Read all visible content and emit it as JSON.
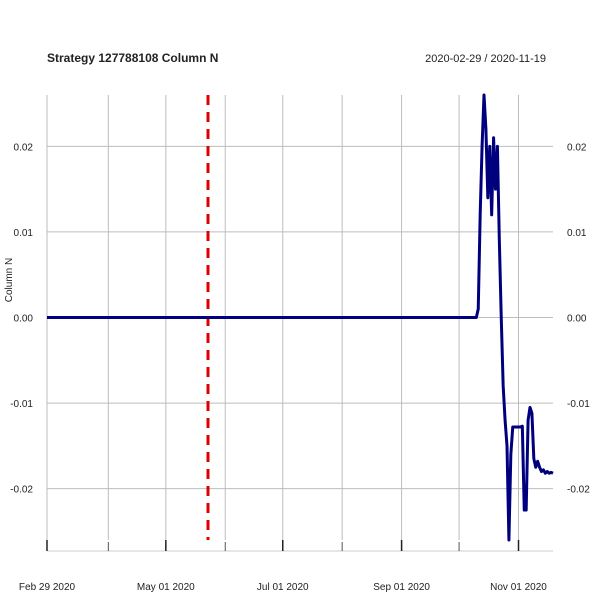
{
  "chart_data": {
    "type": "line",
    "title": "Strategy 127788108 Column N",
    "date_range": "2020-02-29 / 2020-11-19",
    "ylabel": "Column N",
    "xlim": [
      "2020-02-29",
      "2020-11-19"
    ],
    "ylim": [
      -0.026,
      0.026
    ],
    "y_ticks": [
      0.02,
      0.01,
      0.0,
      -0.01,
      -0.02
    ],
    "y_tick_labels": [
      "0.02",
      "0.01",
      "0.00",
      "-0.01",
      "-0.02"
    ],
    "x_ticks": [
      "2020-02-29",
      "2020-05-01",
      "2020-07-01",
      "2020-09-01",
      "2020-11-01"
    ],
    "x_tick_labels": [
      "Feb 29 2020",
      "May 01 2020",
      "Jul 01 2020",
      "Sep 01 2020",
      "Nov 01 2020"
    ],
    "grid": true,
    "event_line": {
      "x": "2020-05-23",
      "color": "#dd0000",
      "style": "dashed"
    },
    "series": [
      {
        "color": "#00007f",
        "x": [
          "2020-02-29",
          "2020-10-10",
          "2020-10-11",
          "2020-10-12",
          "2020-10-13",
          "2020-10-14",
          "2020-10-15",
          "2020-10-16",
          "2020-10-17",
          "2020-10-18",
          "2020-10-19",
          "2020-10-20",
          "2020-10-21",
          "2020-10-22",
          "2020-10-23",
          "2020-10-24",
          "2020-10-25",
          "2020-10-26",
          "2020-10-27",
          "2020-10-28",
          "2020-10-29",
          "2020-10-30",
          "2020-10-31",
          "2020-11-01",
          "2020-11-02",
          "2020-11-03",
          "2020-11-04",
          "2020-11-05",
          "2020-11-06",
          "2020-11-07",
          "2020-11-08",
          "2020-11-09",
          "2020-11-10",
          "2020-11-11",
          "2020-11-12",
          "2020-11-13",
          "2020-11-14",
          "2020-11-15",
          "2020-11-16",
          "2020-11-17",
          "2020-11-18",
          "2020-11-19"
        ],
        "values": [
          0.0,
          0.0,
          0.001,
          0.012,
          0.02,
          0.026,
          0.022,
          0.014,
          0.02,
          0.012,
          0.021,
          0.015,
          0.02,
          0.009,
          0.0,
          -0.008,
          -0.012,
          -0.015,
          -0.026,
          -0.016,
          -0.0128,
          -0.0128,
          -0.0128,
          -0.0128,
          -0.0128,
          -0.0127,
          -0.0225,
          -0.0225,
          -0.012,
          -0.0105,
          -0.0112,
          -0.0165,
          -0.0175,
          -0.0168,
          -0.0175,
          -0.018,
          -0.0178,
          -0.0182,
          -0.018,
          -0.0182,
          -0.0181,
          -0.0182
        ]
      }
    ]
  }
}
